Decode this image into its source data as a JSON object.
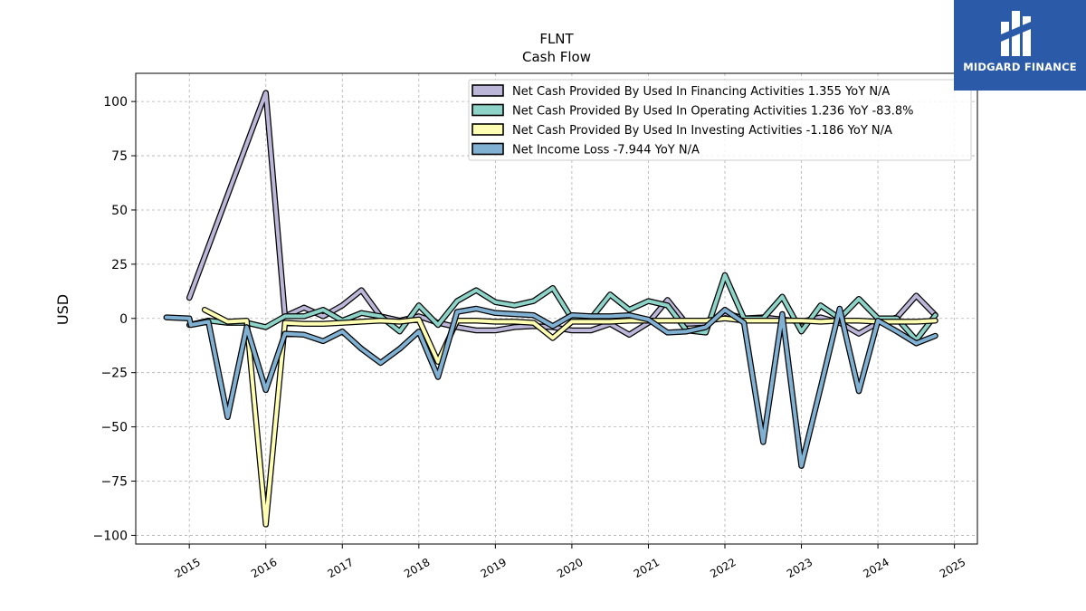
{
  "chart_data": {
    "type": "line",
    "title": "FLNT",
    "subtitle": "Cash Flow",
    "ylabel": "USD",
    "xlabel": "",
    "ylim": [
      -104,
      113
    ],
    "xlim": [
      2014.3,
      2025.3
    ],
    "yticks": [
      100,
      75,
      50,
      25,
      0,
      -25,
      -50,
      -75,
      -100
    ],
    "ytick_labels": [
      "100",
      "75",
      "50",
      "25",
      "0",
      "−25",
      "−50",
      "−75",
      "−100"
    ],
    "xticks": [
      2015,
      2016,
      2017,
      2018,
      2019,
      2020,
      2021,
      2022,
      2023,
      2024,
      2025
    ],
    "xtick_labels": [
      "2015",
      "2016",
      "2017",
      "2018",
      "2019",
      "2020",
      "2021",
      "2022",
      "2023",
      "2024",
      "2025"
    ],
    "grid": true,
    "legend_position": "top-right",
    "series": [
      {
        "name": "Net Cash Provided By Used In Financing Activities  1.355 YoY N/A",
        "color": "#bcb6d8",
        "x": [
          2015.0,
          2016.0,
          2016.25,
          2016.5,
          2016.75,
          2017.0,
          2017.25,
          2017.5,
          2017.75,
          2018.0,
          2018.25,
          2018.5,
          2018.75,
          2019.0,
          2019.25,
          2019.5,
          2019.75,
          2020.0,
          2020.25,
          2020.5,
          2020.75,
          2021.0,
          2021.25,
          2021.5,
          2021.75,
          2022.0,
          2022.25,
          2022.5,
          2022.75,
          2023.0,
          2023.25,
          2023.5,
          2023.75,
          2024.0,
          2024.25,
          2024.5,
          2024.75
        ],
        "y": [
          9.5,
          104,
          1,
          5,
          1,
          6,
          13,
          1,
          -1,
          1,
          -2,
          -4,
          -5.5,
          -5.5,
          -4,
          -3.5,
          -4,
          -5.5,
          -5.5,
          -2.5,
          -7.5,
          -2,
          8.5,
          -2.5,
          -2,
          2.5,
          0,
          0.5,
          -0.5,
          -1.5,
          0.5,
          -2,
          -7,
          -2,
          0.5,
          10.5,
          1.5
        ]
      },
      {
        "name": "Net Cash Provided By Used In Operating Activities  1.236 YoY -83.8%",
        "color": "#8dd3c7",
        "x": [
          2015.0,
          2015.25,
          2015.5,
          2015.75,
          2016.0,
          2016.25,
          2016.5,
          2016.75,
          2017.0,
          2017.25,
          2017.5,
          2017.75,
          2018.0,
          2018.25,
          2018.5,
          2018.75,
          2019.0,
          2019.25,
          2019.5,
          2019.75,
          2020.0,
          2020.25,
          2020.5,
          2020.75,
          2021.0,
          2021.25,
          2021.5,
          2021.75,
          2022.0,
          2022.25,
          2022.5,
          2022.75,
          2023.0,
          2023.25,
          2023.5,
          2023.75,
          2024.0,
          2024.25,
          2024.5,
          2024.75
        ],
        "y": [
          -3,
          -1,
          -2,
          -2,
          -4,
          1,
          1,
          4,
          -1,
          2.5,
          1,
          -6,
          6,
          -3,
          8,
          13,
          7.5,
          6,
          8,
          14,
          0,
          0,
          11,
          4,
          8,
          6,
          -5.5,
          -6.5,
          20,
          0,
          0,
          10,
          -6,
          6,
          0,
          9,
          0,
          0,
          -10,
          1.5
        ]
      },
      {
        "name": "Net Cash Provided By Used In Investing Activities  -1.186 YoY N/A",
        "color": "#ffffb3",
        "x": [
          2015.2,
          2015.5,
          2015.75,
          2016.0,
          2016.25,
          2016.5,
          2016.75,
          2017.0,
          2017.25,
          2017.5,
          2017.75,
          2018.0,
          2018.25,
          2018.5,
          2018.75,
          2019.0,
          2019.25,
          2019.5,
          2019.75,
          2020.0,
          2020.25,
          2020.5,
          2020.75,
          2021.0,
          2021.25,
          2021.5,
          2021.75,
          2022.0,
          2022.25,
          2022.5,
          2022.75,
          2023.0,
          2023.25,
          2023.5,
          2023.75,
          2024.0,
          2024.25,
          2024.5,
          2024.75
        ],
        "y": [
          4,
          -1.5,
          -1,
          -95,
          -2,
          -2.5,
          -2.5,
          -2,
          -1.5,
          -1,
          -1.5,
          -0.5,
          -20,
          -1,
          -1,
          -1.5,
          -1.5,
          -2,
          -9,
          -1.5,
          -1.5,
          -1.5,
          -1,
          -1,
          -1,
          -1,
          -1,
          0,
          -1,
          -1,
          -1,
          -1,
          -1.5,
          -1,
          -1,
          -1.5,
          -1.5,
          -1.5,
          -1
        ]
      },
      {
        "name": "Net Income Loss  -7.944 YoY N/A",
        "color": "#80b1d3",
        "x": [
          2014.7,
          2015.0,
          2015.02,
          2015.25,
          2015.5,
          2015.75,
          2016.0,
          2016.25,
          2016.5,
          2016.75,
          2017.0,
          2017.25,
          2017.5,
          2017.75,
          2018.0,
          2018.25,
          2018.5,
          2018.75,
          2019.0,
          2019.25,
          2019.5,
          2019.75,
          2020.0,
          2020.25,
          2020.5,
          2020.75,
          2021.0,
          2021.25,
          2021.5,
          2021.75,
          2022.0,
          2022.25,
          2022.5,
          2022.75,
          2023.0,
          2023.25,
          2023.5,
          2023.75,
          2024.0,
          2024.25,
          2024.5,
          2024.75
        ],
        "y": [
          0.5,
          0,
          -3,
          -1.5,
          -45.5,
          -4,
          -33,
          -7,
          -7.5,
          -10.5,
          -6,
          -14,
          -20.5,
          -14,
          -6,
          -27,
          3,
          4.5,
          2.5,
          2,
          1.5,
          -3.5,
          1.5,
          1,
          1,
          1.5,
          -0.5,
          -6.5,
          -6,
          -4,
          4,
          -2,
          -57,
          2,
          -68,
          -32,
          4.5,
          -33.5,
          -1,
          -6,
          -11.5,
          -8
        ]
      }
    ]
  },
  "logo": {
    "text": "MIDGARD FINANCE",
    "background": "#2b5aa8"
  }
}
